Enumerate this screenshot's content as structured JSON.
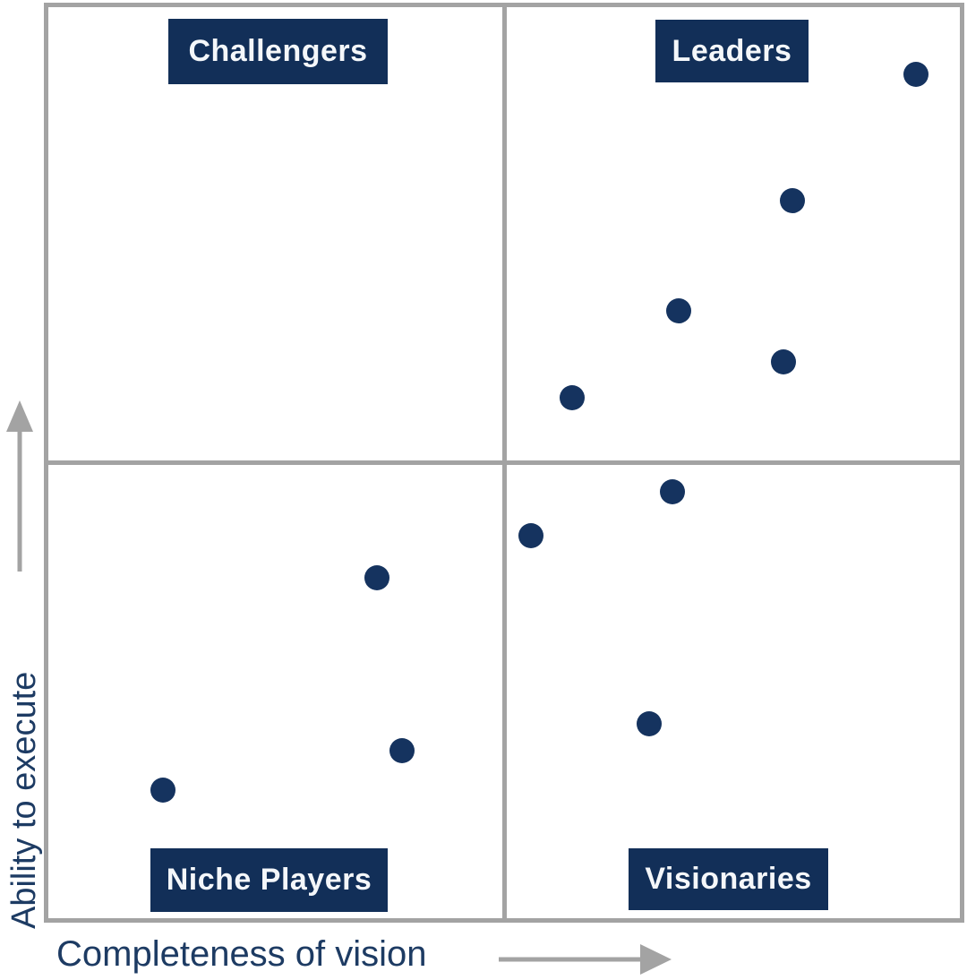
{
  "quadrants": {
    "top_left": "Challengers",
    "top_right": "Leaders",
    "bottom_left": "Niche Players",
    "bottom_right": "Visionaries"
  },
  "axes": {
    "y_label": "Ability to execute",
    "x_label": "Completeness of vision"
  },
  "colors": {
    "navy": "#122f58",
    "dot": "#15335f",
    "axis_text": "#1d3b63",
    "gray": "#a3a3a3"
  },
  "chart_data": {
    "type": "scatter",
    "xlabel": "Completeness of vision",
    "ylabel": "Ability to execute",
    "xlim": [
      0,
      100
    ],
    "ylim": [
      0,
      100
    ],
    "grid": "2x2 quadrant dividers at x=50 and y=50",
    "legend": "none",
    "quadrant_labels": [
      "Challengers",
      "Leaders",
      "Niche Players",
      "Visionaries"
    ],
    "points": [
      {
        "x": 95.2,
        "y": 92.6,
        "quadrant": "Leaders"
      },
      {
        "x": 81.6,
        "y": 78.8,
        "quadrant": "Leaders"
      },
      {
        "x": 69.2,
        "y": 66.7,
        "quadrant": "Leaders"
      },
      {
        "x": 80.6,
        "y": 61.1,
        "quadrant": "Leaders"
      },
      {
        "x": 57.5,
        "y": 57.1,
        "quadrant": "Leaders"
      },
      {
        "x": 68.5,
        "y": 46.8,
        "quadrant": "Visionaries"
      },
      {
        "x": 52.9,
        "y": 42.0,
        "quadrant": "Visionaries"
      },
      {
        "x": 65.9,
        "y": 21.3,
        "quadrant": "Visionaries"
      },
      {
        "x": 36.1,
        "y": 37.4,
        "quadrant": "Niche Players"
      },
      {
        "x": 38.8,
        "y": 18.4,
        "quadrant": "Niche Players"
      },
      {
        "x": 12.6,
        "y": 14.1,
        "quadrant": "Niche Players"
      }
    ]
  }
}
